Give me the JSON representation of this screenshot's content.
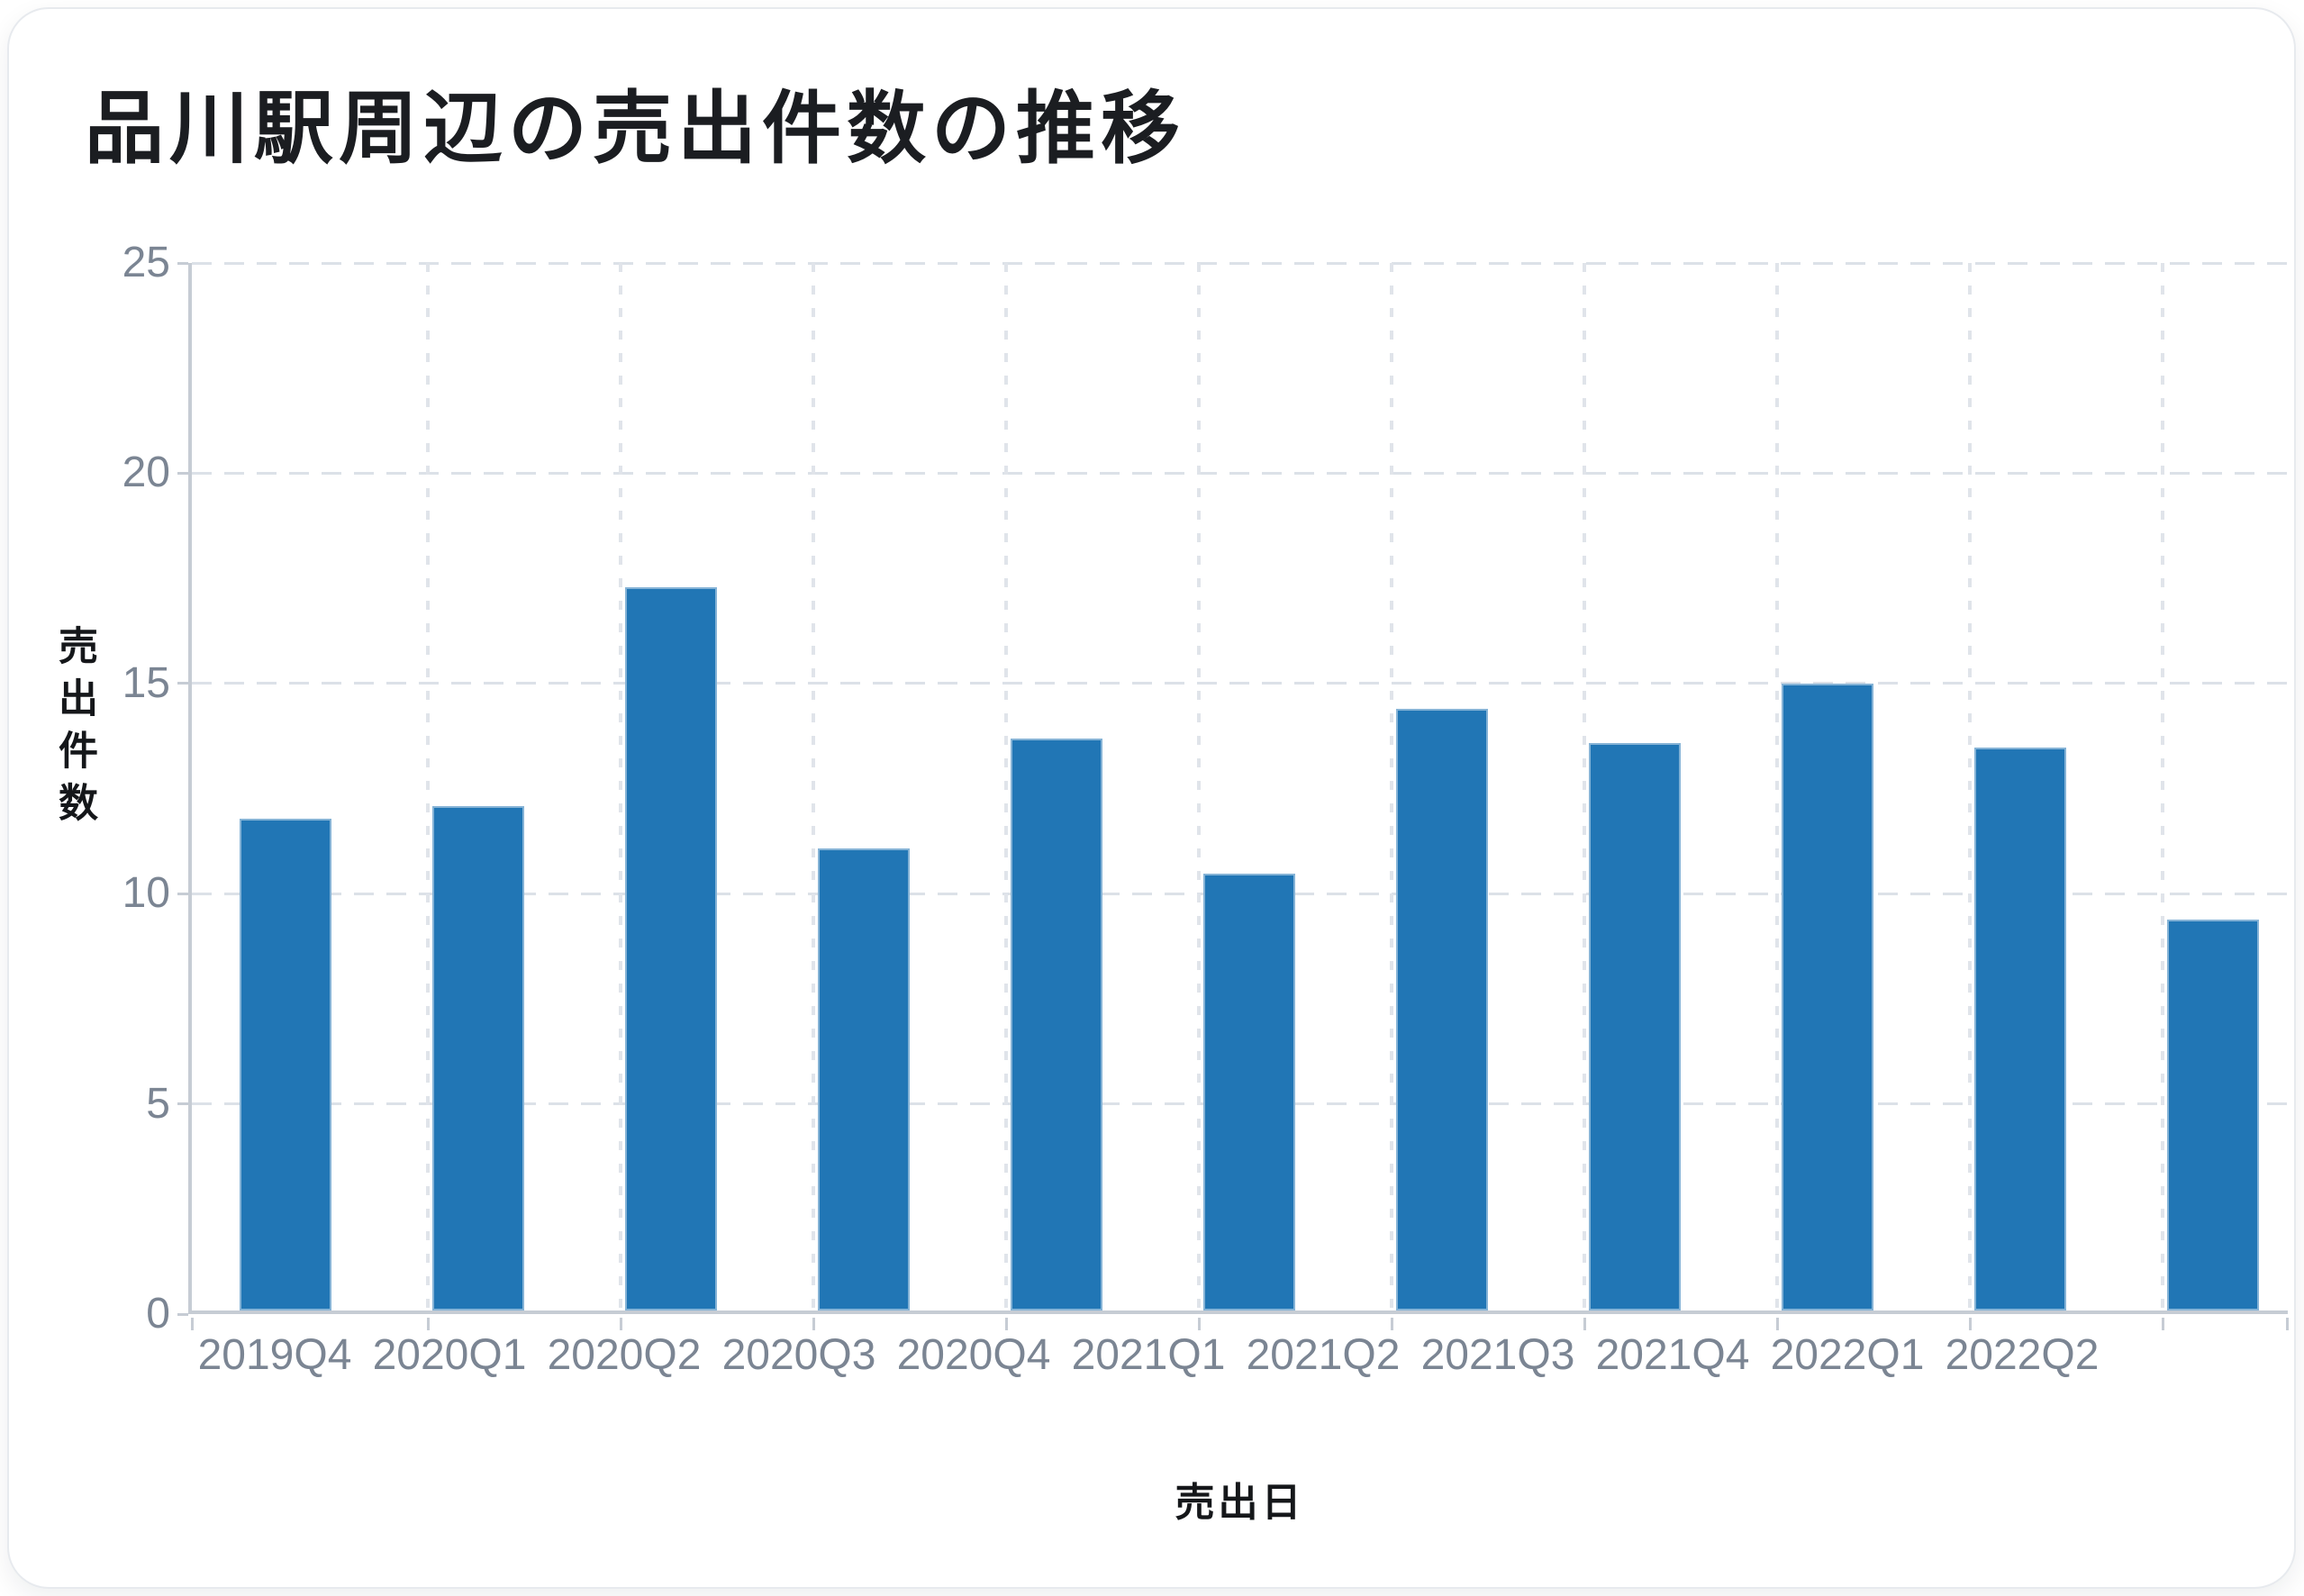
{
  "chart_data": {
    "type": "bar",
    "title": "品川駅周辺の売出件数の推移",
    "xlabel": "売出日",
    "ylabel": "売出件数",
    "categories": [
      "2019Q4",
      "2020Q1",
      "2020Q2",
      "2020Q3",
      "2020Q4",
      "2021Q1",
      "2021Q2",
      "2021Q3",
      "2021Q4",
      "2022Q1",
      "2022Q2"
    ],
    "values": [
      11.7,
      12.0,
      17.2,
      11.0,
      13.6,
      10.4,
      14.3,
      13.5,
      14.9,
      13.4,
      9.3
    ],
    "ylim": [
      0,
      25
    ],
    "yticks": [
      0,
      5,
      10,
      15,
      20,
      25
    ],
    "bar_color": "#2176b5",
    "grid": "dashed horizontal at every 5, dotted vertical between groups",
    "legend_position": "none"
  }
}
